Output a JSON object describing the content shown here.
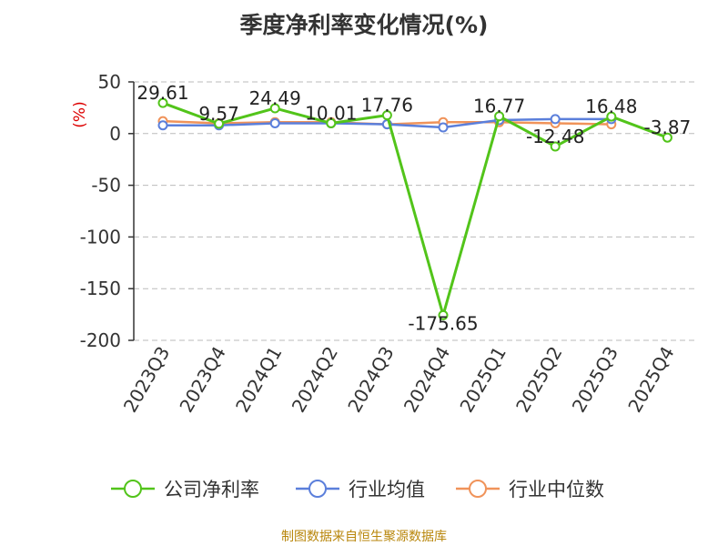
{
  "title": "季度净利率变化情况(%)",
  "source": "制图数据来自恒生聚源数据库",
  "chart_data": {
    "type": "line",
    "title": "季度净利率变化情况(%)",
    "ylabel": "(%)",
    "ylim": [
      -200,
      50
    ],
    "yticks": [
      50,
      0,
      -50,
      -100,
      -150,
      -200
    ],
    "grid": true,
    "legend_position": "bottom",
    "x": [
      "2023Q3",
      "2023Q4",
      "2024Q1",
      "2024Q2",
      "2024Q3",
      "2024Q4",
      "2025Q1",
      "2025Q2",
      "2025Q3",
      "2025Q4"
    ],
    "series": [
      {
        "name": "公司净利率",
        "color": "#52c41a",
        "values": [
          29.61,
          9.57,
          24.49,
          10.01,
          17.76,
          -175.65,
          16.77,
          -12.48,
          16.48,
          -3.87
        ],
        "labels": [
          "29.61",
          "9.57",
          "24.49",
          "10.01",
          "17.76",
          "-175.65",
          "16.77",
          "-12.48",
          "16.48",
          "-3.87"
        ]
      },
      {
        "name": "行业均值",
        "color": "#5b7fdb",
        "values": [
          8,
          8,
          10,
          10,
          9,
          6,
          13,
          14,
          14,
          null
        ]
      },
      {
        "name": "行业中位数",
        "color": "#f0935a",
        "values": [
          12,
          10,
          11,
          11,
          9,
          11,
          11,
          10,
          9,
          null
        ]
      }
    ]
  }
}
